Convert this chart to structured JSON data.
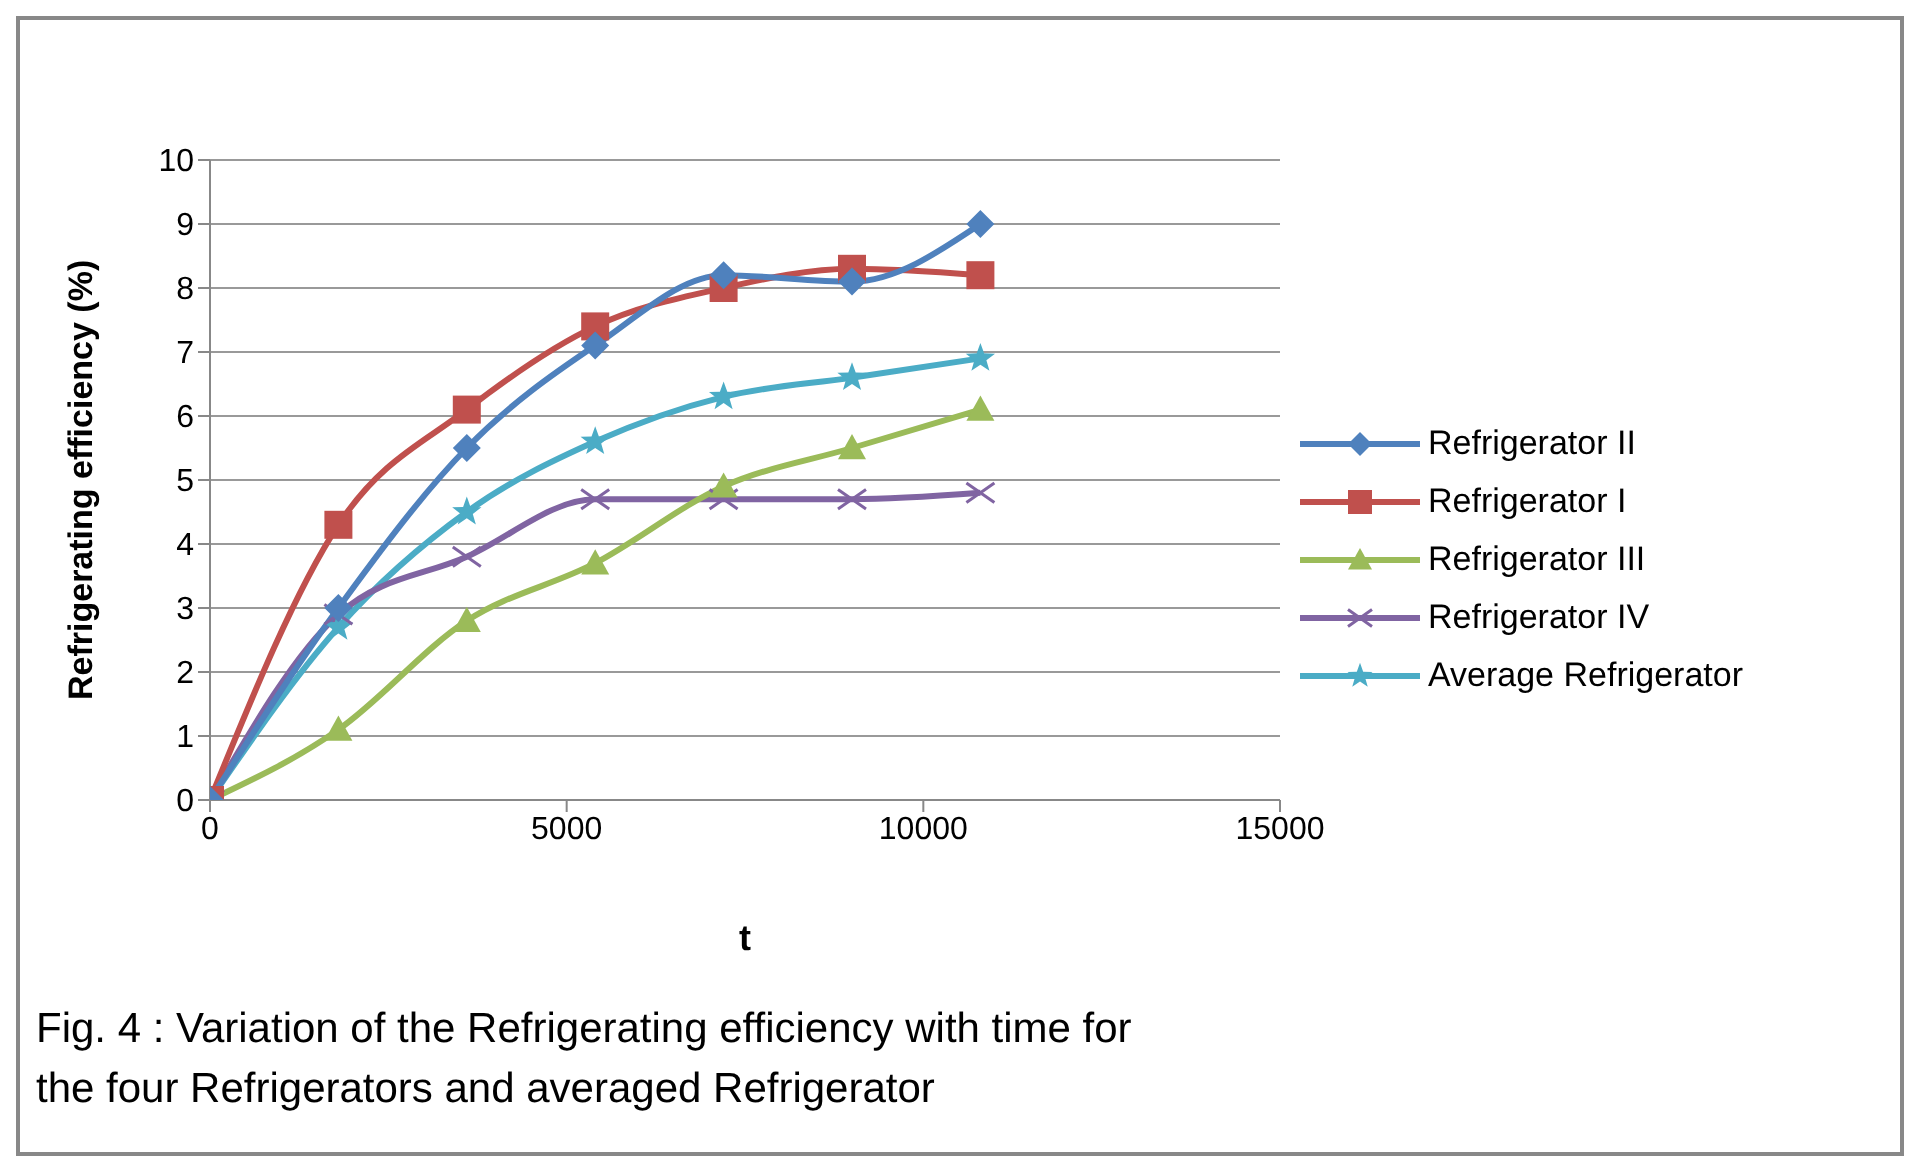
{
  "chart_data": {
    "type": "line",
    "xlabel": "t",
    "ylabel": "Refrigerating efficiency (%)",
    "x": [
      0,
      1800,
      3600,
      5400,
      7200,
      9000,
      10800
    ],
    "xlim": [
      0,
      15000
    ],
    "xticks": [
      0,
      5000,
      10000,
      15000
    ],
    "ylim": [
      0,
      10
    ],
    "yticks": [
      0,
      1,
      2,
      3,
      4,
      5,
      6,
      7,
      8,
      9,
      10
    ],
    "grid": "y",
    "legend": "right",
    "series": [
      {
        "name": "Refrigerator II",
        "color": "#4f81bd",
        "marker": "diamond",
        "values": [
          0,
          3,
          5.5,
          7.1,
          8.2,
          8.1,
          9
        ]
      },
      {
        "name": "Refrigerator I",
        "color": "#c0504d",
        "marker": "square",
        "values": [
          0,
          4.3,
          6.1,
          7.4,
          8,
          8.3,
          8.2
        ]
      },
      {
        "name": "Refrigerator III",
        "color": "#9bbb59",
        "marker": "triangle",
        "values": [
          0,
          1.1,
          2.8,
          3.7,
          4.9,
          5.5,
          6.1
        ]
      },
      {
        "name": "Refrigerator IV",
        "color": "#8064a2",
        "marker": "cross",
        "values": [
          0,
          2.9,
          3.8,
          4.7,
          4.7,
          4.7,
          4.8
        ]
      },
      {
        "name": "Average Refrigerator",
        "color": "#4bacc6",
        "marker": "star",
        "values": [
          0,
          2.7,
          4.5,
          5.6,
          6.3,
          6.6,
          6.9
        ]
      }
    ],
    "annotations": [
      "Fig. 4 : Variation of the Refrigerating efficiency  with time for the four Refrigerators and averaged Refrigerator"
    ]
  }
}
